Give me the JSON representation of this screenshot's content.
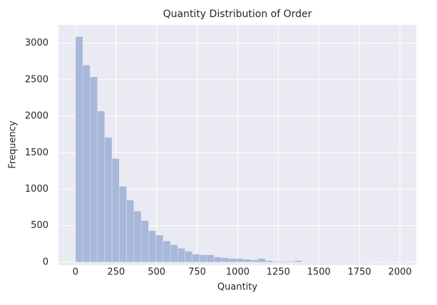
{
  "chart_data": {
    "type": "histogram",
    "title": "Quantity Distribution of Order",
    "x_label": "Quantity",
    "y_label": "Frequency",
    "bins": [
      0,
      45,
      90,
      135,
      180,
      225,
      270,
      315,
      360,
      405,
      450,
      495,
      540,
      585,
      630,
      675,
      720,
      765,
      810,
      855,
      900,
      945,
      990,
      1035,
      1080,
      1125,
      1170,
      1215,
      1260,
      1305,
      1350,
      1395,
      1440,
      1485,
      1530,
      1575,
      1620,
      1665,
      1710,
      1755,
      1800,
      1845,
      1890,
      1935,
      1980,
      2025
    ],
    "values": [
      3090,
      2700,
      2540,
      2070,
      1710,
      1420,
      1040,
      850,
      700,
      570,
      430,
      370,
      290,
      240,
      190,
      150,
      110,
      100,
      100,
      70,
      60,
      50,
      50,
      40,
      30,
      50,
      20,
      10,
      10,
      10,
      20,
      5,
      5,
      5,
      3,
      2,
      2,
      1,
      1,
      1,
      1,
      0,
      1,
      0,
      1
    ],
    "color": "#a7b8da",
    "background": "#eaeaf2",
    "grid": true,
    "xlim": [
      -105,
      2101
    ],
    "xticks": [
      0,
      250,
      500,
      750,
      1000,
      1250,
      1500,
      1750,
      2000
    ],
    "ylim": [
      -40,
      3250
    ],
    "yticks": [
      0,
      500,
      1000,
      1500,
      2000,
      2500,
      3000
    ]
  }
}
